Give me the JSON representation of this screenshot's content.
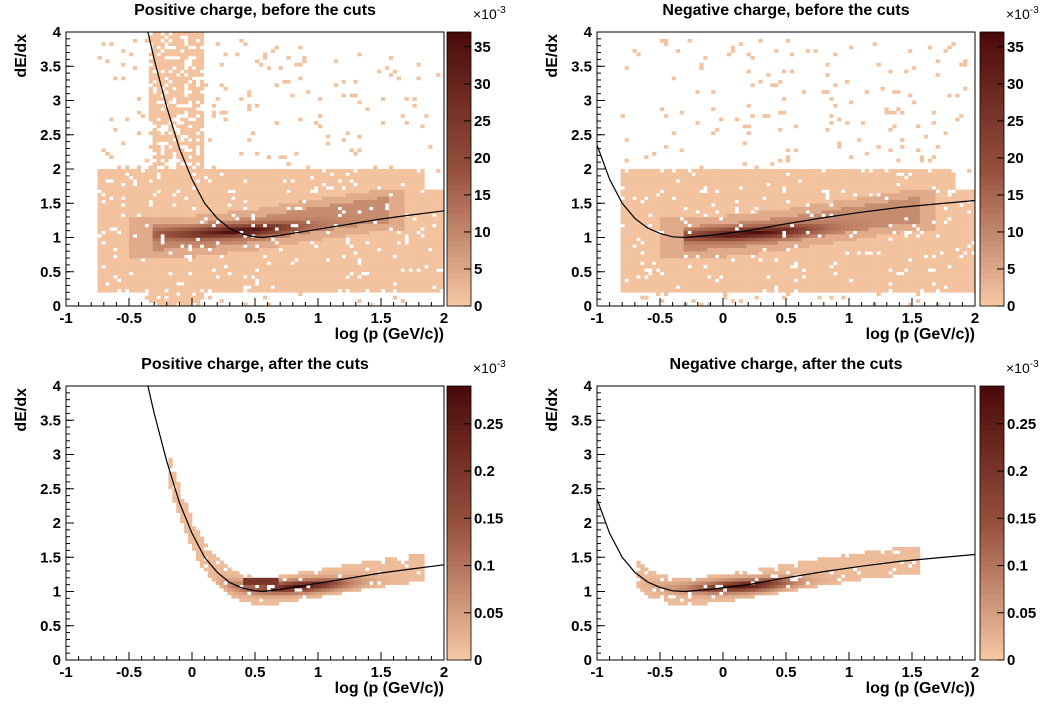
{
  "chart_data": [
    {
      "type": "heatmap",
      "title": "Positive charge, before the cuts",
      "xlabel": "log (p (GeV/c))",
      "ylabel": "dE/dx",
      "xlim": [
        -1,
        2
      ],
      "ylim": [
        0,
        4
      ],
      "x_ticks": [
        "-1",
        "-0.5",
        "0",
        "0.5",
        "1",
        "1.5",
        "2"
      ],
      "y_ticks": [
        "0",
        "0.5",
        "1",
        "1.5",
        "2",
        "2.5",
        "3",
        "3.5",
        "4"
      ],
      "colorbar": {
        "min": 0,
        "max": 37,
        "ticks": [
          "0",
          "5",
          "10",
          "15",
          "20",
          "25",
          "30",
          "35"
        ],
        "exponent": "×10",
        "exponent_power": "-3"
      },
      "curve": [
        [
          -0.35,
          4.0
        ],
        [
          -0.3,
          3.6
        ],
        [
          -0.2,
          2.9
        ],
        [
          -0.1,
          2.3
        ],
        [
          0.0,
          1.85
        ],
        [
          0.1,
          1.5
        ],
        [
          0.2,
          1.28
        ],
        [
          0.3,
          1.13
        ],
        [
          0.4,
          1.05
        ],
        [
          0.5,
          1.01
        ],
        [
          0.56,
          1.0
        ],
        [
          0.7,
          1.03
        ],
        [
          0.9,
          1.09
        ],
        [
          1.1,
          1.15
        ],
        [
          1.3,
          1.21
        ],
        [
          1.5,
          1.27
        ],
        [
          1.7,
          1.32
        ],
        [
          2.0,
          1.39
        ]
      ],
      "band": [
        [
          -0.3,
          1.0
        ],
        [
          0.0,
          1.02
        ],
        [
          0.5,
          1.12
        ],
        [
          1.0,
          1.27
        ],
        [
          1.5,
          1.4
        ]
      ],
      "peak": [
        0.35,
        1.1
      ]
    },
    {
      "type": "heatmap",
      "title": "Negative charge, before the cuts",
      "xlabel": "log (p (GeV/c))",
      "ylabel": "dE/dx",
      "xlim": [
        -1,
        2
      ],
      "ylim": [
        0,
        4
      ],
      "x_ticks": [
        "-1",
        "-0.5",
        "0",
        "0.5",
        "1",
        "1.5",
        "2"
      ],
      "y_ticks": [
        "0",
        "0.5",
        "1",
        "1.5",
        "2",
        "2.5",
        "3",
        "3.5",
        "4"
      ],
      "colorbar": {
        "min": 0,
        "max": 37,
        "ticks": [
          "0",
          "5",
          "10",
          "15",
          "20",
          "25",
          "30",
          "35"
        ],
        "exponent": "×10",
        "exponent_power": "-3"
      },
      "curve": [
        [
          -1.0,
          2.35
        ],
        [
          -0.9,
          1.85
        ],
        [
          -0.8,
          1.5
        ],
        [
          -0.7,
          1.28
        ],
        [
          -0.6,
          1.14
        ],
        [
          -0.5,
          1.06
        ],
        [
          -0.4,
          1.01
        ],
        [
          -0.3,
          1.0
        ],
        [
          -0.1,
          1.03
        ],
        [
          0.2,
          1.1
        ],
        [
          0.5,
          1.2
        ],
        [
          0.8,
          1.29
        ],
        [
          1.1,
          1.37
        ],
        [
          1.4,
          1.44
        ],
        [
          1.7,
          1.49
        ],
        [
          2.0,
          1.54
        ]
      ],
      "band": [
        [
          -0.3,
          0.98
        ],
        [
          0.0,
          1.02
        ],
        [
          0.5,
          1.12
        ],
        [
          1.0,
          1.26
        ],
        [
          1.5,
          1.4
        ]
      ],
      "peak": [
        0.2,
        1.07
      ]
    },
    {
      "type": "heatmap",
      "title": "Positive charge, after the cuts",
      "xlabel": "log (p (GeV/c))",
      "ylabel": "dE/dx",
      "xlim": [
        -1,
        2
      ],
      "ylim": [
        0,
        4
      ],
      "x_ticks": [
        "-1",
        "-0.5",
        "0",
        "0.5",
        "1",
        "1.5",
        "2"
      ],
      "y_ticks": [
        "0",
        "0.5",
        "1",
        "1.5",
        "2",
        "2.5",
        "3",
        "3.5",
        "4"
      ],
      "colorbar": {
        "min": 0,
        "max": 0.29,
        "ticks": [
          "0",
          "0.05",
          "0.1",
          "0.15",
          "0.2",
          "0.25"
        ],
        "exponent": "×10",
        "exponent_power": "-3"
      },
      "curve": [
        [
          -0.35,
          4.0
        ],
        [
          -0.3,
          3.6
        ],
        [
          -0.2,
          2.9
        ],
        [
          -0.1,
          2.3
        ],
        [
          0.0,
          1.85
        ],
        [
          0.1,
          1.5
        ],
        [
          0.2,
          1.28
        ],
        [
          0.3,
          1.13
        ],
        [
          0.4,
          1.05
        ],
        [
          0.5,
          1.01
        ],
        [
          0.56,
          1.0
        ],
        [
          0.7,
          1.03
        ],
        [
          0.9,
          1.09
        ],
        [
          1.1,
          1.15
        ],
        [
          1.3,
          1.21
        ],
        [
          1.5,
          1.27
        ],
        [
          1.7,
          1.32
        ],
        [
          2.0,
          1.39
        ]
      ],
      "peak": [
        0.85,
        1.08
      ]
    },
    {
      "type": "heatmap",
      "title": "Negative charge, after the cuts",
      "xlabel": "log (p (GeV/c))",
      "ylabel": "dE/dx",
      "xlim": [
        -1,
        2
      ],
      "ylim": [
        0,
        4
      ],
      "x_ticks": [
        "-1",
        "-0.5",
        "0",
        "0.5",
        "1",
        "1.5",
        "2"
      ],
      "y_ticks": [
        "0",
        "0.5",
        "1",
        "1.5",
        "2",
        "2.5",
        "3",
        "3.5",
        "4"
      ],
      "colorbar": {
        "min": 0,
        "max": 0.29,
        "ticks": [
          "0",
          "0.05",
          "0.1",
          "0.15",
          "0.2",
          "0.25"
        ],
        "exponent": "×10",
        "exponent_power": "-3"
      },
      "curve": [
        [
          -1.0,
          2.35
        ],
        [
          -0.9,
          1.85
        ],
        [
          -0.8,
          1.5
        ],
        [
          -0.7,
          1.28
        ],
        [
          -0.6,
          1.14
        ],
        [
          -0.5,
          1.06
        ],
        [
          -0.4,
          1.01
        ],
        [
          -0.3,
          1.0
        ],
        [
          -0.1,
          1.03
        ],
        [
          0.2,
          1.1
        ],
        [
          0.5,
          1.2
        ],
        [
          0.8,
          1.29
        ],
        [
          1.1,
          1.37
        ],
        [
          1.4,
          1.44
        ],
        [
          1.7,
          1.49
        ],
        [
          2.0,
          1.54
        ]
      ],
      "peak": [
        0.2,
        1.08
      ]
    }
  ],
  "colors": {
    "scale_low": "#f7c8a4",
    "scale_high": "#4a0a0a",
    "curve": "#000000"
  }
}
